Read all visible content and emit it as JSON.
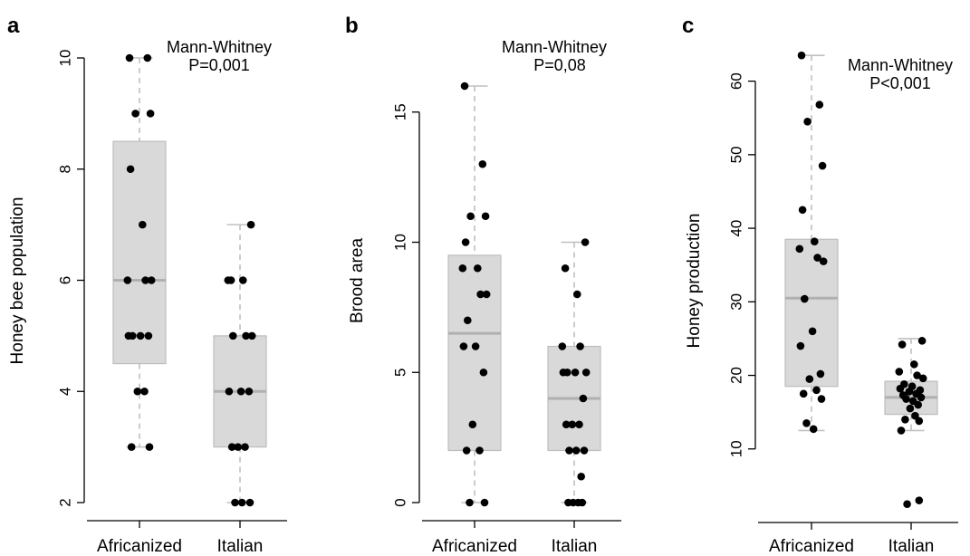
{
  "chart_data": [
    {
      "type": "box",
      "panel_label": "a",
      "ylabel": "Honey bee population",
      "ylim": [
        2,
        10
      ],
      "yticks": [
        2,
        4,
        6,
        8,
        10
      ],
      "categories": [
        "Africanized",
        "Italian"
      ],
      "annotation": [
        "Mann-Whitney",
        "P=0,001"
      ],
      "boxes": [
        {
          "whisker_low": 3,
          "q1": 4.5,
          "median": 6,
          "q3": 8.5,
          "whisker_high": 10
        },
        {
          "whisker_low": 2,
          "q1": 3,
          "median": 4,
          "q3": 5,
          "whisker_high": 7
        }
      ],
      "points": [
        [
          10,
          10,
          9,
          9,
          8,
          7,
          6,
          6,
          6,
          5,
          5,
          5,
          5,
          4,
          4,
          3,
          3
        ],
        [
          7,
          6,
          6,
          6,
          5,
          5,
          5,
          4,
          4,
          4,
          3,
          3,
          3,
          2,
          2,
          2
        ]
      ],
      "box_color": "#d9d9d9",
      "median_color": "#b0b0b0",
      "point_color": "#000000"
    },
    {
      "type": "box",
      "panel_label": "b",
      "ylabel": "Brood area",
      "ylim": [
        0,
        16
      ],
      "yticks": [
        0,
        5,
        10,
        15
      ],
      "categories": [
        "Africanized",
        "Italian"
      ],
      "annotation": [
        "Mann-Whitney",
        "P=0,08"
      ],
      "boxes": [
        {
          "whisker_low": 0,
          "q1": 2,
          "median": 6.5,
          "q3": 9.5,
          "whisker_high": 16
        },
        {
          "whisker_low": 0,
          "q1": 2,
          "median": 4,
          "q3": 6,
          "whisker_high": 10
        }
      ],
      "points": [
        [
          16,
          13,
          11,
          11,
          10,
          9,
          9,
          8,
          8,
          7,
          6,
          6,
          5,
          3,
          2,
          2,
          0,
          0
        ],
        [
          10,
          9,
          8,
          6,
          6,
          5,
          5,
          5,
          5,
          4,
          3,
          3,
          3,
          2,
          2,
          2,
          1,
          0,
          0,
          0,
          0
        ]
      ],
      "box_color": "#d9d9d9",
      "median_color": "#b0b0b0",
      "point_color": "#000000"
    },
    {
      "type": "box",
      "panel_label": "c",
      "ylabel": "Honey production",
      "ylim": [
        0,
        65
      ],
      "yticks": [
        10,
        20,
        30,
        40,
        50,
        60
      ],
      "categories": [
        "Africanized",
        "Italian"
      ],
      "annotation": [
        "Mann-Whitney",
        "P<0,001"
      ],
      "boxes": [
        {
          "whisker_low": 12.5,
          "q1": 18.5,
          "median": 30.5,
          "q3": 38.5,
          "whisker_high": 63.5
        },
        {
          "whisker_low": 12.5,
          "q1": 14.7,
          "median": 17,
          "q3": 19.2,
          "whisker_high": 25
        }
      ],
      "points": [
        [
          63.5,
          56.8,
          54.5,
          48.5,
          42.5,
          38.2,
          37.2,
          36,
          35.5,
          30.4,
          26,
          24,
          20.2,
          19.5,
          18,
          17.5,
          16.8,
          13.5,
          12.7
        ],
        [
          24.7,
          24.2,
          21.5,
          20.5,
          20,
          19.6,
          18.8,
          18.5,
          18.2,
          18,
          17.8,
          17.5,
          17.3,
          17,
          16.8,
          16.5,
          16,
          15.5,
          14.5,
          14,
          13.8,
          12.5,
          3,
          2.5
        ]
      ],
      "box_color": "#d9d9d9",
      "median_color": "#b0b0b0",
      "point_color": "#000000"
    }
  ]
}
